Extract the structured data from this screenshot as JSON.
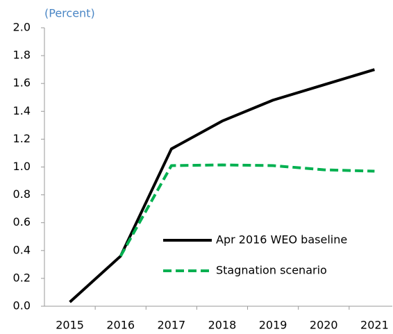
{
  "chart_data": {
    "type": "line",
    "subtitle": "(Percent)",
    "categories": [
      "2015",
      "2016",
      "2017",
      "2018",
      "2019",
      "2020",
      "2021"
    ],
    "series": [
      {
        "name": "Apr 2016 WEO baseline",
        "color": "#000000",
        "dash": "solid",
        "values": [
          0.03,
          0.36,
          1.13,
          1.33,
          1.48,
          1.59,
          1.7
        ]
      },
      {
        "name": "Stagnation scenario",
        "color": "#00b050",
        "dash": "dashed",
        "values": [
          null,
          0.36,
          1.01,
          1.015,
          1.01,
          0.98,
          0.97
        ]
      }
    ],
    "ylim": [
      0,
      2.0
    ],
    "yticks": [
      {
        "value": 0,
        "label": "0.0"
      },
      {
        "value": 0.2,
        "label": "0.2"
      },
      {
        "value": 0.4,
        "label": "0.4"
      },
      {
        "value": 0.6,
        "label": "0.6"
      },
      {
        "value": 0.8,
        "label": "0.8"
      },
      {
        "value": 1.0,
        "label": "1.0"
      },
      {
        "value": 1.2,
        "label": "1.2"
      },
      {
        "value": 1.4,
        "label": "1.4"
      },
      {
        "value": 1.6,
        "label": "1.6"
      },
      {
        "value": 1.8,
        "label": "1.8"
      },
      {
        "value": 2.0,
        "label": "2.0"
      }
    ],
    "grid": false
  }
}
